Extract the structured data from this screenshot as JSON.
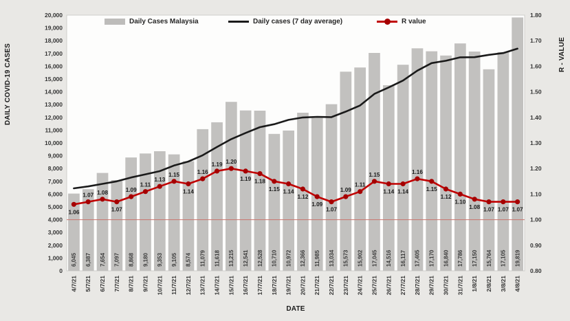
{
  "figure": {
    "legend": [
      {
        "label": "Daily Cases Malaysia",
        "swatch": "bar-swatch",
        "color": "#bdbcba"
      },
      {
        "label": "Daily cases (7 day average)",
        "swatch": "line-swatch",
        "color": "#1a1a1a"
      },
      {
        "label": "R value",
        "swatch": "line-marker-swatch",
        "color": "#c00000"
      }
    ]
  },
  "chart_data": {
    "type": "bar",
    "subtype": "combo-bar-line-dual-axis",
    "categories": [
      "4/7/21",
      "5/7/21",
      "6/7/21",
      "7/7/21",
      "8/7/21",
      "9/7/21",
      "10/7/21",
      "11/7/21",
      "12/7/21",
      "13/7/21",
      "14/7/21",
      "15/7/21",
      "16/7/21",
      "17/7/21",
      "18/7/21",
      "19/7/21",
      "20/7/21",
      "21/7/21",
      "22/7/21",
      "23/7/21",
      "24/7/21",
      "25/7/21",
      "26/7/21",
      "27/7/21",
      "28/7/21",
      "29/7/21",
      "30/7/21",
      "31/7/21",
      "1/8/21",
      "2/8/21",
      "3/8/21",
      "4/8/21"
    ],
    "series": [
      {
        "name": "Daily Cases Malaysia",
        "type": "bar",
        "yaxis": "left",
        "color": "#c2c1bf",
        "values": [
          6045,
          6387,
          7654,
          7097,
          8868,
          9180,
          9353,
          9105,
          8574,
          11079,
          11618,
          13215,
          12541,
          12528,
          10710,
          10972,
          12366,
          11985,
          13034,
          15573,
          15902,
          17045,
          14516,
          16117,
          17405,
          17170,
          16840,
          17786,
          17150,
          15764,
          17105,
          19819
        ]
      },
      {
        "name": "Daily cases (7 day average)",
        "type": "line",
        "yaxis": "left",
        "color": "#1a1a1a",
        "values": [
          6450,
          6600,
          6800,
          7000,
          7300,
          7550,
          7798,
          8235,
          8547,
          9037,
          9682,
          10303,
          10784,
          11237,
          11466,
          11809,
          11993,
          12045,
          12019,
          12453,
          12935,
          13840,
          14346,
          14882,
          15656,
          16247,
          16428,
          16697,
          16712,
          16890,
          17031,
          17376
        ]
      },
      {
        "name": "R value",
        "type": "line",
        "yaxis": "right",
        "color": "#c00000",
        "marker_color": "#a50000",
        "values": [
          1.06,
          1.07,
          1.08,
          1.07,
          1.09,
          1.11,
          1.13,
          1.15,
          1.14,
          1.16,
          1.19,
          1.2,
          1.19,
          1.18,
          1.15,
          1.14,
          1.12,
          1.09,
          1.07,
          1.09,
          1.11,
          1.15,
          1.14,
          1.14,
          1.16,
          1.15,
          1.12,
          1.1,
          1.08,
          1.07,
          1.07,
          1.07
        ],
        "label_side": [
          "below",
          "above",
          "above",
          "below",
          "above",
          "above",
          "above",
          "above",
          "below",
          "above",
          "above",
          "above",
          "below",
          "below",
          "below",
          "below",
          "below",
          "below",
          "below",
          "above",
          "above",
          "above",
          "below",
          "below",
          "above",
          "below",
          "below",
          "below",
          "below",
          "below",
          "below",
          "below"
        ]
      }
    ],
    "left_axis": {
      "label": "DAILY COVID-19 CASES",
      "min": 0,
      "max": 20000,
      "step": 1000
    },
    "right_axis": {
      "label": "R - VALUE",
      "min": 0.8,
      "max": 1.8,
      "step": 0.1
    },
    "x_axis": {
      "label": "DATE"
    },
    "reference_line": {
      "axis": "right",
      "value": 1.0,
      "color": "#c9756d"
    },
    "grid": "none",
    "legend_position": "top-inside",
    "plot_background": "#fdfdfc"
  }
}
